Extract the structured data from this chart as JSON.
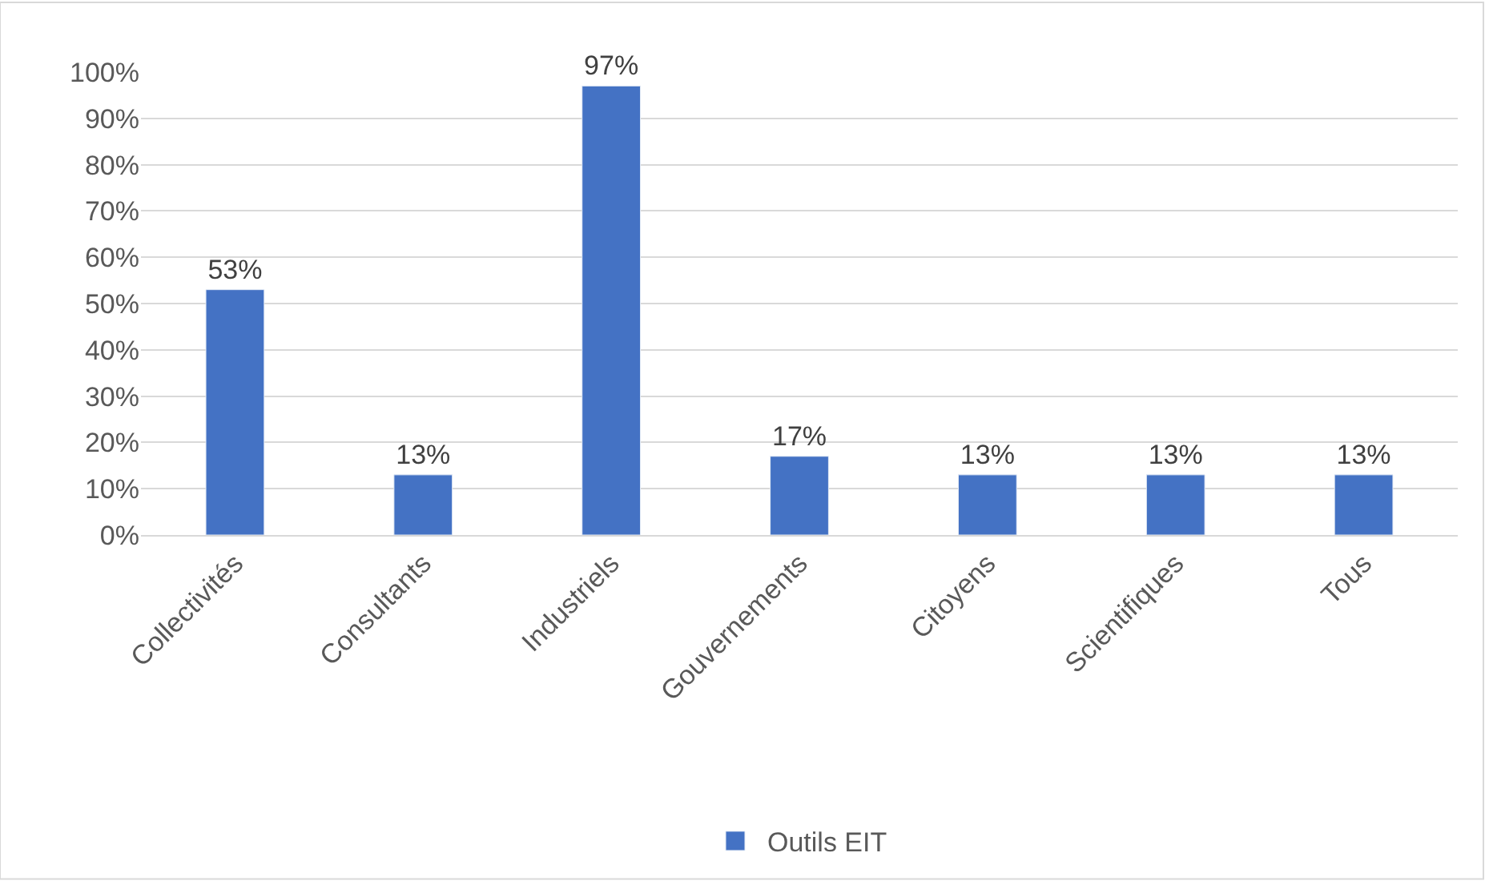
{
  "chart_data": {
    "type": "bar",
    "categories": [
      "Collectivités",
      "Consultants",
      "Industriels",
      "Gouvernements",
      "Citoyens",
      "Scientifiques",
      "Tous"
    ],
    "series": [
      {
        "name": "Outils EIT",
        "color": "#4472c4",
        "values": [
          53,
          13,
          97,
          17,
          13,
          13,
          13
        ],
        "value_labels": [
          "53%",
          "13%",
          "97%",
          "17%",
          "13%",
          "13%",
          "13%"
        ]
      }
    ],
    "ylim": [
      0,
      100
    ],
    "yticks": [
      {
        "value": 0,
        "label": "0%"
      },
      {
        "value": 10,
        "label": "10%"
      },
      {
        "value": 20,
        "label": "20%"
      },
      {
        "value": 30,
        "label": "30%"
      },
      {
        "value": 40,
        "label": "40%"
      },
      {
        "value": 50,
        "label": "50%"
      },
      {
        "value": 60,
        "label": "60%"
      },
      {
        "value": 70,
        "label": "70%"
      },
      {
        "value": 80,
        "label": "80%"
      },
      {
        "value": 90,
        "label": "90%"
      },
      {
        "value": 100,
        "label": "100%"
      }
    ],
    "grid": "y",
    "legend": "bottom"
  }
}
